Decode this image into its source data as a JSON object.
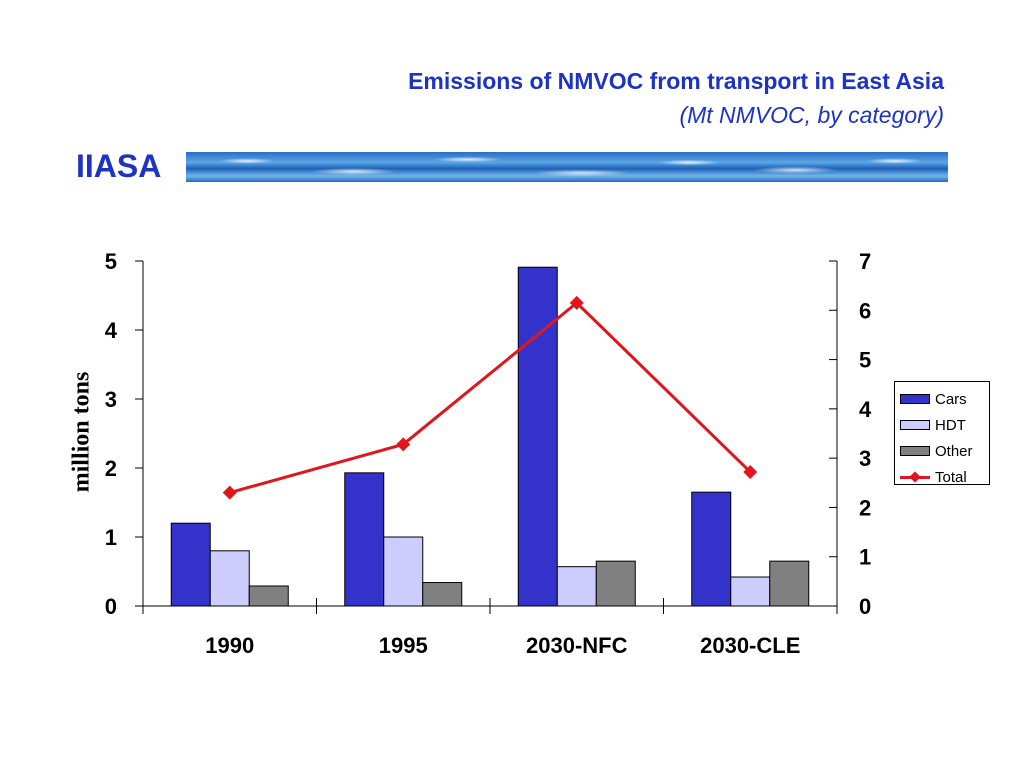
{
  "header": {
    "title": "Emissions of NMVOC from transport in East Asia",
    "subtitle": "(Mt NMVOC, by category)",
    "organization": "IIASA"
  },
  "colors": {
    "title": "#1c33c4",
    "cars": "#3333cc",
    "hdt": "#ccccff",
    "other": "#808080",
    "total": "#e0161c"
  },
  "chart_data": {
    "type": "bar",
    "title": "Emissions of NMVOC from transport in East Asia",
    "subtitle": "(Mt NMVOC, by category)",
    "categories": [
      "1990",
      "1995",
      "2030-NFC",
      "2030-CLE"
    ],
    "ylabel": "million tons",
    "ylim": [
      0,
      5
    ],
    "yticks": [
      0,
      1,
      2,
      3,
      4,
      5
    ],
    "y2lim": [
      0,
      7
    ],
    "y2ticks": [
      0,
      1,
      2,
      3,
      4,
      5,
      6,
      7
    ],
    "grid": false,
    "legend_position": "right",
    "series": [
      {
        "name": "Cars",
        "type": "bar",
        "axis": "left",
        "color": "#3333cc",
        "values": [
          1.2,
          1.93,
          4.91,
          1.65
        ]
      },
      {
        "name": "HDT",
        "type": "bar",
        "axis": "left",
        "color": "#ccccff",
        "values": [
          0.8,
          1.0,
          0.57,
          0.42
        ]
      },
      {
        "name": "Other",
        "type": "bar",
        "axis": "left",
        "color": "#808080",
        "values": [
          0.29,
          0.34,
          0.65,
          0.65
        ]
      },
      {
        "name": "Total",
        "type": "line",
        "axis": "right",
        "color": "#e0161c",
        "marker": "diamond",
        "values": [
          2.3,
          3.28,
          6.15,
          2.72
        ]
      }
    ]
  }
}
